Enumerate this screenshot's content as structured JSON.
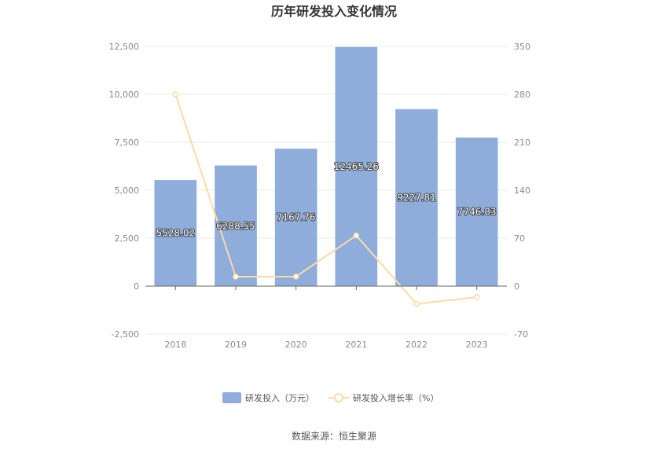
{
  "title": "历年研发投入变化情况",
  "source": "数据来源：恒生聚源",
  "legend": {
    "bar_label": "研发投入（万元）",
    "line_label": "研发投入增长率（%）"
  },
  "colors": {
    "bar": "#8eaddb",
    "line": "#fadca4",
    "grid": "#e8e8e8",
    "axis": "#666666"
  },
  "chart_data": {
    "type": "bar",
    "categories": [
      "2018",
      "2019",
      "2020",
      "2021",
      "2022",
      "2023"
    ],
    "series": [
      {
        "name": "研发投入（万元）",
        "type": "bar",
        "axis": "left",
        "values": [
          5528.02,
          6288.55,
          7167.76,
          12465.26,
          9227.81,
          7746.83
        ],
        "labels": [
          "5528.02",
          "6288.55",
          "7167.76",
          "12465.26",
          "9227.81",
          "7746.83"
        ]
      },
      {
        "name": "研发投入增长率（%）",
        "type": "line",
        "axis": "right",
        "values": [
          280,
          13.76,
          13.97,
          73.9,
          -25.97,
          -16.05
        ]
      }
    ],
    "y_left": {
      "min": -2500,
      "max": 12500,
      "ticks": [
        "-2,500",
        "0",
        "2,500",
        "5,000",
        "7,500",
        "10,000",
        "12,500"
      ],
      "tick_values": [
        -2500,
        0,
        2500,
        5000,
        7500,
        10000,
        12500
      ]
    },
    "y_right": {
      "min": -70,
      "max": 350,
      "ticks": [
        "-70",
        "0",
        "70",
        "140",
        "210",
        "280",
        "350"
      ],
      "tick_values": [
        -70,
        0,
        70,
        140,
        210,
        280,
        350
      ]
    },
    "grid": true,
    "legend_position": "bottom"
  }
}
